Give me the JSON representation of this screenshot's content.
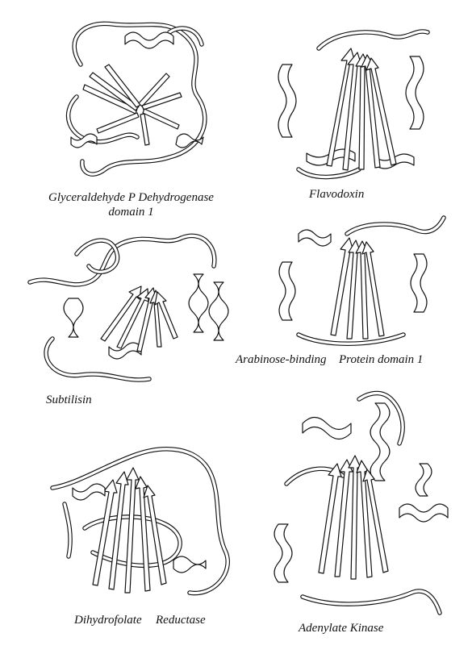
{
  "figure": {
    "captions": {
      "gapdh_line1": "Glyceraldehyde P Dehydrogenase",
      "gapdh_line2": "domain 1",
      "flavodoxin": "Flavodoxin",
      "subtilisin": "Subtilisin",
      "arabinose_part1": "Arabinose-binding",
      "arabinose_part2": "Protein  domain 1",
      "dhfr_part1": "Dihydrofolate",
      "dhfr_part2": "Reductase",
      "adenylate_kinase": "Adenylate Kinase"
    },
    "line_color": "#111111",
    "background_color": "#ffffff"
  }
}
